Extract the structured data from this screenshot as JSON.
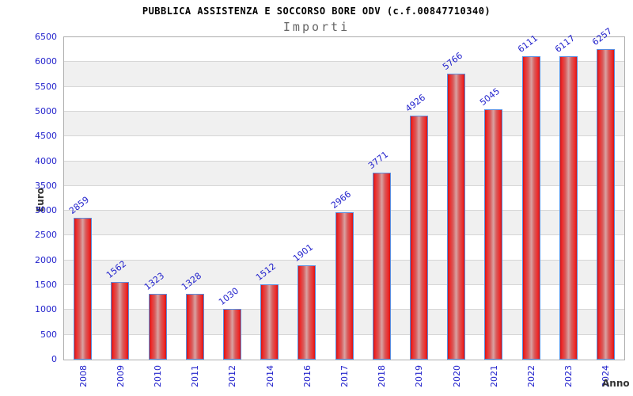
{
  "chart_data": {
    "type": "bar",
    "title": "PUBBLICA ASSISTENZA E SOCCORSO BORE ODV (c.f.00847710340)",
    "subtitle": "Importi",
    "xlabel": "Anno",
    "ylabel": "Euro",
    "categories": [
      "2008",
      "2009",
      "2010",
      "2011",
      "2012",
      "2014",
      "2016",
      "2017",
      "2018",
      "2019",
      "2020",
      "2021",
      "2022",
      "2023",
      "2024"
    ],
    "values": [
      2859,
      1562,
      1323,
      1328,
      1030,
      1512,
      1901,
      2966,
      3771,
      4926,
      5766,
      5045,
      6111,
      6117,
      6257
    ],
    "ylim": [
      0,
      6500
    ],
    "ytick_step": 500,
    "grid": "horizontal-bands",
    "legend_position": "none",
    "colors": {
      "label_blue": "#2222cc",
      "bar_border": "#5b8ee0",
      "bar_fill_edge": "#cf1717",
      "bar_fill_bright": "#ee2828",
      "bar_fill_mid": "#d85c5c",
      "bar_fill_center": "#d9a2a2",
      "band_alt": "#f0f0f0",
      "gridline": "#d6d6d6",
      "plot_border": "#adadad",
      "title_color": "#000000",
      "subtitle_color": "#666666",
      "axis_title_color": "#333333"
    }
  }
}
